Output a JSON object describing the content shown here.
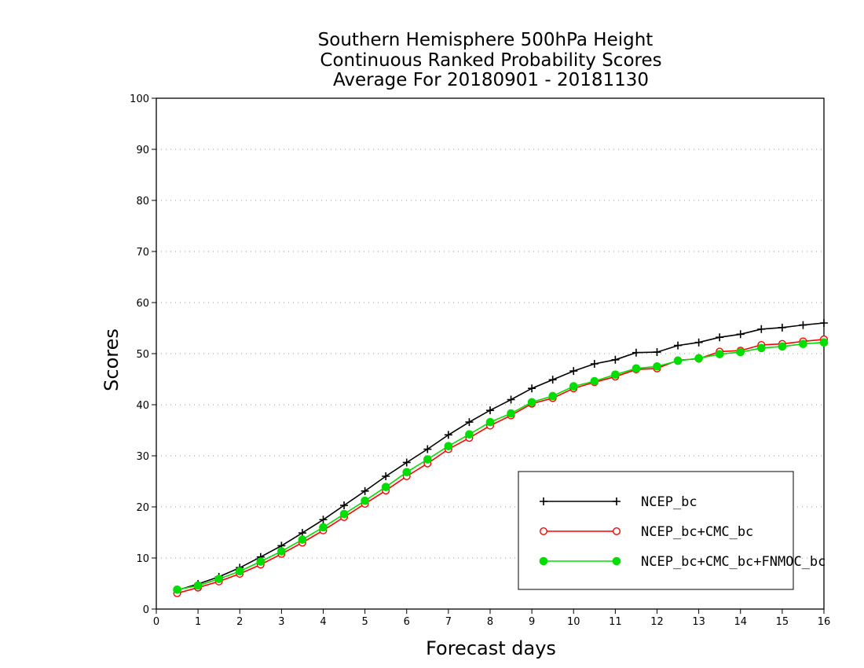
{
  "chart_data": {
    "type": "line",
    "title": [
      "Southern Hemisphere 500hPa Height",
      "Continuous Ranked Probability Scores",
      "Average For 20180901 - 20181130"
    ],
    "xlabel": "Forecast days",
    "ylabel": "Scores",
    "xlim": [
      0,
      16
    ],
    "ylim": [
      0,
      100
    ],
    "xticks": [
      "0",
      "1",
      "2",
      "3",
      "4",
      "5",
      "6",
      "7",
      "8",
      "9",
      "10",
      "11",
      "12",
      "13",
      "14",
      "15",
      "16"
    ],
    "yticks": [
      "0",
      "10",
      "20",
      "30",
      "40",
      "50",
      "60",
      "70",
      "80",
      "90",
      "100"
    ],
    "grid": true,
    "legend_position": "bottom-right",
    "x": [
      0.5,
      1,
      1.5,
      2,
      2.5,
      3,
      3.5,
      4,
      4.5,
      5,
      5.5,
      6,
      6.5,
      7,
      7.5,
      8,
      8.5,
      9,
      9.5,
      10,
      10.5,
      11,
      11.5,
      12,
      12.5,
      13,
      13.5,
      14,
      14.5,
      15,
      15.5,
      16
    ],
    "series": [
      {
        "name": "NCEP_bc",
        "color": "#000000",
        "marker": "plus",
        "values": [
          3.7,
          4.9,
          6.3,
          8.1,
          10.2,
          12.4,
          14.9,
          17.5,
          20.3,
          23.1,
          26.0,
          28.7,
          31.3,
          34.1,
          36.6,
          38.9,
          41.0,
          43.2,
          44.9,
          46.6,
          48.0,
          48.8,
          50.2,
          50.3,
          51.6,
          52.2,
          53.2,
          53.8,
          54.8,
          55.1,
          55.6,
          56.0
        ]
      },
      {
        "name": "NCEP_bc+CMC_bc",
        "color": "#ff0000",
        "marker": "open-circle",
        "values": [
          3.1,
          4.2,
          5.4,
          6.9,
          8.7,
          10.8,
          13.0,
          15.4,
          18.0,
          20.6,
          23.2,
          26.0,
          28.5,
          31.3,
          33.5,
          35.9,
          37.9,
          40.2,
          41.3,
          43.2,
          44.4,
          45.5,
          46.9,
          47.1,
          48.7,
          49.0,
          50.4,
          50.6,
          51.7,
          51.9,
          52.4,
          52.8
        ]
      },
      {
        "name": "NCEP_bc+CMC_bc+FNMOC_bc",
        "color": "#00dd00",
        "marker": "filled-circle",
        "values": [
          3.8,
          4.6,
          5.9,
          7.4,
          9.3,
          11.3,
          13.6,
          16.0,
          18.6,
          21.2,
          23.9,
          26.8,
          29.3,
          31.9,
          34.2,
          36.6,
          38.3,
          40.5,
          41.7,
          43.6,
          44.6,
          45.9,
          47.1,
          47.5,
          48.6,
          49.1,
          49.9,
          50.3,
          51.1,
          51.4,
          51.9,
          52.2
        ]
      }
    ]
  }
}
